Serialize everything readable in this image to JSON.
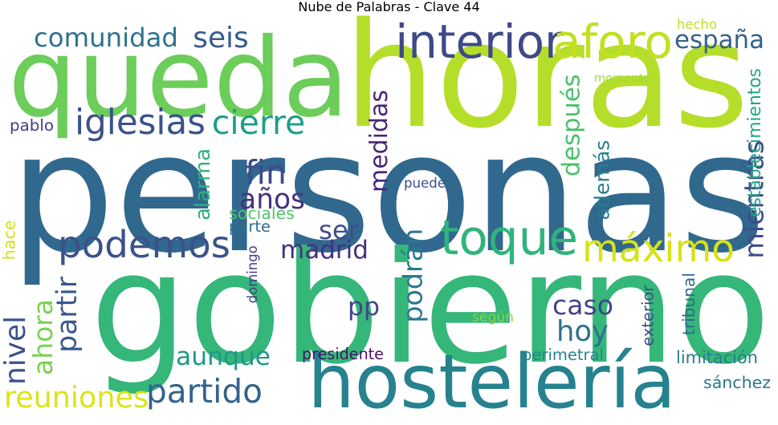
{
  "title": "Nube de Palabras - Clave 44",
  "words": [
    {
      "text": "personas",
      "color": "#31688e"
    },
    {
      "text": "horas",
      "color": "#b5de2b"
    },
    {
      "text": "gobierno",
      "color": "#35b779"
    },
    {
      "text": "queda",
      "color": "#6ccd5a"
    },
    {
      "text": "hostelería",
      "color": "#26828e"
    },
    {
      "text": "interior",
      "color": "#3e4989"
    },
    {
      "text": "aforo",
      "color": "#c2df23"
    },
    {
      "text": "toque",
      "color": "#2fb47c"
    },
    {
      "text": "podemos",
      "color": "#3b528b"
    },
    {
      "text": "máximo",
      "color": "#d8e219"
    },
    {
      "text": "comunidad",
      "color": "#2c728e"
    },
    {
      "text": "seis",
      "color": "#375b8d"
    },
    {
      "text": "españa",
      "color": "#33638d"
    },
    {
      "text": "iglesias",
      "color": "#3b528b"
    },
    {
      "text": "cierre",
      "color": "#1f9e89"
    },
    {
      "text": "fin",
      "color": "#3e4a89"
    },
    {
      "text": "años",
      "color": "#46327e"
    },
    {
      "text": "alarma",
      "color": "#2db27d"
    },
    {
      "text": "medidas",
      "color": "#482576"
    },
    {
      "text": "después",
      "color": "#4ac16d"
    },
    {
      "text": "además",
      "color": "#277f8e"
    },
    {
      "text": "mientras",
      "color": "#3e4a89"
    },
    {
      "text": "ser",
      "color": "#3d4e8a"
    },
    {
      "text": "madrid",
      "color": "#46307e"
    },
    {
      "text": "podrán",
      "color": "#2a788e"
    },
    {
      "text": "pp",
      "color": "#3f4788"
    },
    {
      "text": "caso",
      "color": "#414487"
    },
    {
      "text": "hoy",
      "color": "#2d718e"
    },
    {
      "text": "nivel",
      "color": "#3b528b"
    },
    {
      "text": "ahora",
      "color": "#7ad151"
    },
    {
      "text": "partir",
      "color": "#38588c"
    },
    {
      "text": "aunque",
      "color": "#1f988b"
    },
    {
      "text": "partido",
      "color": "#33638d"
    },
    {
      "text": "reuniones",
      "color": "#dde318"
    },
    {
      "text": "pablo",
      "color": "#424086"
    },
    {
      "text": "hecho",
      "color": "#c0df25"
    },
    {
      "text": "momento",
      "color": "#a2da37"
    },
    {
      "text": "establecimientos",
      "color": "#21a685"
    },
    {
      "text": "puede",
      "color": "#3d4d8a"
    },
    {
      "text": "sociales",
      "color": "#52c569"
    },
    {
      "text": "parte",
      "color": "#2e6f8e"
    },
    {
      "text": "domingo",
      "color": "#443983"
    },
    {
      "text": "hace",
      "color": "#d2e21b"
    },
    {
      "text": "según",
      "color": "#84d44b"
    },
    {
      "text": "exterior",
      "color": "#3e4989"
    },
    {
      "text": "tribunal",
      "color": "#31668e"
    },
    {
      "text": "presidente",
      "color": "#471365"
    },
    {
      "text": "perimetral",
      "color": "#26828e"
    },
    {
      "text": "limitación",
      "color": "#287d8e"
    },
    {
      "text": "sánchez",
      "color": "#2a768e"
    }
  ]
}
